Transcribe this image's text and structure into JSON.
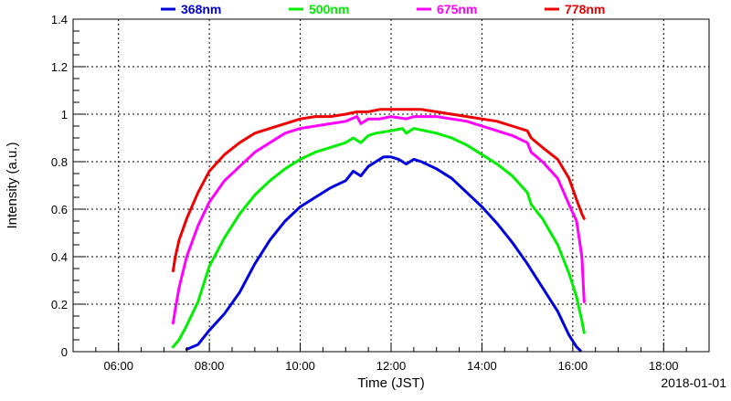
{
  "chart_data": {
    "type": "line",
    "title": "",
    "xlabel": "Time (JST)",
    "ylabel": "Intensity (a.u.)",
    "date_label": "2018-01-01",
    "xlim": [
      "05:00",
      "19:00"
    ],
    "ylim": [
      0,
      1.4
    ],
    "x_ticks": [
      "06:00",
      "08:00",
      "10:00",
      "12:00",
      "14:00",
      "16:00",
      "18:00"
    ],
    "y_ticks": [
      "0",
      "0.2",
      "0.4",
      "0.6",
      "0.8",
      "1",
      "1.2",
      "1.4"
    ],
    "grid": true,
    "legend_position": "top",
    "series": [
      {
        "name": "368nm",
        "color": "#0000dd",
        "points": [
          [
            "07:30",
            0.01
          ],
          [
            "07:45",
            0.03
          ],
          [
            "08:00",
            0.09
          ],
          [
            "08:20",
            0.16
          ],
          [
            "08:40",
            0.25
          ],
          [
            "09:00",
            0.37
          ],
          [
            "09:20",
            0.47
          ],
          [
            "09:40",
            0.55
          ],
          [
            "10:00",
            0.61
          ],
          [
            "10:20",
            0.65
          ],
          [
            "10:40",
            0.69
          ],
          [
            "11:00",
            0.72
          ],
          [
            "11:10",
            0.76
          ],
          [
            "11:20",
            0.74
          ],
          [
            "11:30",
            0.78
          ],
          [
            "11:40",
            0.8
          ],
          [
            "11:50",
            0.82
          ],
          [
            "12:00",
            0.82
          ],
          [
            "12:10",
            0.81
          ],
          [
            "12:20",
            0.79
          ],
          [
            "12:30",
            0.81
          ],
          [
            "12:40",
            0.8
          ],
          [
            "13:00",
            0.77
          ],
          [
            "13:20",
            0.73
          ],
          [
            "13:40",
            0.67
          ],
          [
            "14:00",
            0.61
          ],
          [
            "14:20",
            0.54
          ],
          [
            "14:40",
            0.46
          ],
          [
            "15:00",
            0.37
          ],
          [
            "15:20",
            0.27
          ],
          [
            "15:40",
            0.17
          ],
          [
            "15:55",
            0.07
          ],
          [
            "16:05",
            0.02
          ],
          [
            "16:10",
            0.005
          ]
        ]
      },
      {
        "name": "500nm",
        "color": "#00ee00",
        "points": [
          [
            "07:12",
            0.02
          ],
          [
            "07:20",
            0.05
          ],
          [
            "07:30",
            0.11
          ],
          [
            "07:45",
            0.21
          ],
          [
            "08:00",
            0.36
          ],
          [
            "08:20",
            0.48
          ],
          [
            "08:40",
            0.58
          ],
          [
            "09:00",
            0.66
          ],
          [
            "09:20",
            0.72
          ],
          [
            "09:40",
            0.77
          ],
          [
            "10:00",
            0.81
          ],
          [
            "10:20",
            0.84
          ],
          [
            "10:40",
            0.86
          ],
          [
            "11:00",
            0.88
          ],
          [
            "11:10",
            0.9
          ],
          [
            "11:20",
            0.88
          ],
          [
            "11:30",
            0.91
          ],
          [
            "11:40",
            0.92
          ],
          [
            "12:00",
            0.93
          ],
          [
            "12:15",
            0.94
          ],
          [
            "12:20",
            0.92
          ],
          [
            "12:30",
            0.94
          ],
          [
            "12:45",
            0.93
          ],
          [
            "13:00",
            0.92
          ],
          [
            "13:20",
            0.9
          ],
          [
            "13:40",
            0.87
          ],
          [
            "14:00",
            0.83
          ],
          [
            "14:20",
            0.79
          ],
          [
            "14:40",
            0.74
          ],
          [
            "15:00",
            0.67
          ],
          [
            "15:05",
            0.62
          ],
          [
            "15:10",
            0.6
          ],
          [
            "15:20",
            0.56
          ],
          [
            "15:40",
            0.45
          ],
          [
            "15:55",
            0.33
          ],
          [
            "16:05",
            0.23
          ],
          [
            "16:12",
            0.13
          ],
          [
            "16:15",
            0.08
          ]
        ]
      },
      {
        "name": "675nm",
        "color": "#ff00ff",
        "points": [
          [
            "07:12",
            0.12
          ],
          [
            "07:15",
            0.18
          ],
          [
            "07:20",
            0.27
          ],
          [
            "07:30",
            0.4
          ],
          [
            "07:45",
            0.53
          ],
          [
            "08:00",
            0.63
          ],
          [
            "08:20",
            0.72
          ],
          [
            "08:40",
            0.78
          ],
          [
            "09:00",
            0.84
          ],
          [
            "09:20",
            0.88
          ],
          [
            "09:40",
            0.92
          ],
          [
            "10:00",
            0.94
          ],
          [
            "10:20",
            0.95
          ],
          [
            "10:40",
            0.96
          ],
          [
            "11:00",
            0.97
          ],
          [
            "11:15",
            0.99
          ],
          [
            "11:20",
            0.96
          ],
          [
            "11:30",
            0.98
          ],
          [
            "11:45",
            0.98
          ],
          [
            "12:00",
            0.99
          ],
          [
            "12:20",
            0.98
          ],
          [
            "12:30",
            0.99
          ],
          [
            "12:45",
            0.99
          ],
          [
            "13:00",
            0.99
          ],
          [
            "13:20",
            0.98
          ],
          [
            "13:40",
            0.97
          ],
          [
            "14:00",
            0.95
          ],
          [
            "14:20",
            0.93
          ],
          [
            "14:40",
            0.91
          ],
          [
            "15:00",
            0.88
          ],
          [
            "15:05",
            0.84
          ],
          [
            "15:20",
            0.8
          ],
          [
            "15:40",
            0.73
          ],
          [
            "15:55",
            0.62
          ],
          [
            "16:05",
            0.55
          ],
          [
            "16:12",
            0.4
          ],
          [
            "16:15",
            0.21
          ]
        ]
      },
      {
        "name": "778nm",
        "color": "#ee0000",
        "points": [
          [
            "07:12",
            0.34
          ],
          [
            "07:15",
            0.4
          ],
          [
            "07:20",
            0.47
          ],
          [
            "07:30",
            0.56
          ],
          [
            "07:45",
            0.67
          ],
          [
            "08:00",
            0.76
          ],
          [
            "08:20",
            0.83
          ],
          [
            "08:40",
            0.88
          ],
          [
            "09:00",
            0.92
          ],
          [
            "09:20",
            0.94
          ],
          [
            "09:40",
            0.96
          ],
          [
            "10:00",
            0.98
          ],
          [
            "10:20",
            0.99
          ],
          [
            "10:40",
            0.99
          ],
          [
            "11:00",
            1.0
          ],
          [
            "11:15",
            1.01
          ],
          [
            "11:30",
            1.01
          ],
          [
            "11:45",
            1.02
          ],
          [
            "12:00",
            1.02
          ],
          [
            "12:20",
            1.02
          ],
          [
            "12:40",
            1.02
          ],
          [
            "13:00",
            1.01
          ],
          [
            "13:20",
            1.0
          ],
          [
            "13:40",
            0.99
          ],
          [
            "14:00",
            0.98
          ],
          [
            "14:20",
            0.97
          ],
          [
            "14:40",
            0.95
          ],
          [
            "15:00",
            0.93
          ],
          [
            "15:05",
            0.9
          ],
          [
            "15:20",
            0.86
          ],
          [
            "15:40",
            0.81
          ],
          [
            "15:55",
            0.73
          ],
          [
            "16:05",
            0.64
          ],
          [
            "16:12",
            0.58
          ],
          [
            "16:15",
            0.56
          ]
        ]
      }
    ]
  }
}
